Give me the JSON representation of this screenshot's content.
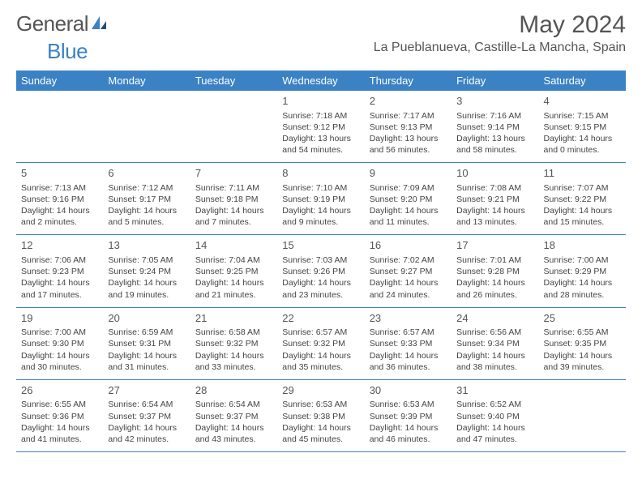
{
  "brand": {
    "part1": "General",
    "part2": "Blue"
  },
  "title": "May 2024",
  "location": "La Pueblanueva, Castille-La Mancha, Spain",
  "colors": {
    "header_bg": "#3b82c4",
    "header_text": "#ffffff",
    "text": "#444444",
    "title_text": "#555555",
    "rule": "#3b82c4"
  },
  "day_names": [
    "Sunday",
    "Monday",
    "Tuesday",
    "Wednesday",
    "Thursday",
    "Friday",
    "Saturday"
  ],
  "weeks": [
    [
      null,
      null,
      null,
      {
        "n": "1",
        "sr": "7:18 AM",
        "ss": "9:12 PM",
        "dl": "13 hours and 54 minutes."
      },
      {
        "n": "2",
        "sr": "7:17 AM",
        "ss": "9:13 PM",
        "dl": "13 hours and 56 minutes."
      },
      {
        "n": "3",
        "sr": "7:16 AM",
        "ss": "9:14 PM",
        "dl": "13 hours and 58 minutes."
      },
      {
        "n": "4",
        "sr": "7:15 AM",
        "ss": "9:15 PM",
        "dl": "14 hours and 0 minutes."
      }
    ],
    [
      {
        "n": "5",
        "sr": "7:13 AM",
        "ss": "9:16 PM",
        "dl": "14 hours and 2 minutes."
      },
      {
        "n": "6",
        "sr": "7:12 AM",
        "ss": "9:17 PM",
        "dl": "14 hours and 5 minutes."
      },
      {
        "n": "7",
        "sr": "7:11 AM",
        "ss": "9:18 PM",
        "dl": "14 hours and 7 minutes."
      },
      {
        "n": "8",
        "sr": "7:10 AM",
        "ss": "9:19 PM",
        "dl": "14 hours and 9 minutes."
      },
      {
        "n": "9",
        "sr": "7:09 AM",
        "ss": "9:20 PM",
        "dl": "14 hours and 11 minutes."
      },
      {
        "n": "10",
        "sr": "7:08 AM",
        "ss": "9:21 PM",
        "dl": "14 hours and 13 minutes."
      },
      {
        "n": "11",
        "sr": "7:07 AM",
        "ss": "9:22 PM",
        "dl": "14 hours and 15 minutes."
      }
    ],
    [
      {
        "n": "12",
        "sr": "7:06 AM",
        "ss": "9:23 PM",
        "dl": "14 hours and 17 minutes."
      },
      {
        "n": "13",
        "sr": "7:05 AM",
        "ss": "9:24 PM",
        "dl": "14 hours and 19 minutes."
      },
      {
        "n": "14",
        "sr": "7:04 AM",
        "ss": "9:25 PM",
        "dl": "14 hours and 21 minutes."
      },
      {
        "n": "15",
        "sr": "7:03 AM",
        "ss": "9:26 PM",
        "dl": "14 hours and 23 minutes."
      },
      {
        "n": "16",
        "sr": "7:02 AM",
        "ss": "9:27 PM",
        "dl": "14 hours and 24 minutes."
      },
      {
        "n": "17",
        "sr": "7:01 AM",
        "ss": "9:28 PM",
        "dl": "14 hours and 26 minutes."
      },
      {
        "n": "18",
        "sr": "7:00 AM",
        "ss": "9:29 PM",
        "dl": "14 hours and 28 minutes."
      }
    ],
    [
      {
        "n": "19",
        "sr": "7:00 AM",
        "ss": "9:30 PM",
        "dl": "14 hours and 30 minutes."
      },
      {
        "n": "20",
        "sr": "6:59 AM",
        "ss": "9:31 PM",
        "dl": "14 hours and 31 minutes."
      },
      {
        "n": "21",
        "sr": "6:58 AM",
        "ss": "9:32 PM",
        "dl": "14 hours and 33 minutes."
      },
      {
        "n": "22",
        "sr": "6:57 AM",
        "ss": "9:32 PM",
        "dl": "14 hours and 35 minutes."
      },
      {
        "n": "23",
        "sr": "6:57 AM",
        "ss": "9:33 PM",
        "dl": "14 hours and 36 minutes."
      },
      {
        "n": "24",
        "sr": "6:56 AM",
        "ss": "9:34 PM",
        "dl": "14 hours and 38 minutes."
      },
      {
        "n": "25",
        "sr": "6:55 AM",
        "ss": "9:35 PM",
        "dl": "14 hours and 39 minutes."
      }
    ],
    [
      {
        "n": "26",
        "sr": "6:55 AM",
        "ss": "9:36 PM",
        "dl": "14 hours and 41 minutes."
      },
      {
        "n": "27",
        "sr": "6:54 AM",
        "ss": "9:37 PM",
        "dl": "14 hours and 42 minutes."
      },
      {
        "n": "28",
        "sr": "6:54 AM",
        "ss": "9:37 PM",
        "dl": "14 hours and 43 minutes."
      },
      {
        "n": "29",
        "sr": "6:53 AM",
        "ss": "9:38 PM",
        "dl": "14 hours and 45 minutes."
      },
      {
        "n": "30",
        "sr": "6:53 AM",
        "ss": "9:39 PM",
        "dl": "14 hours and 46 minutes."
      },
      {
        "n": "31",
        "sr": "6:52 AM",
        "ss": "9:40 PM",
        "dl": "14 hours and 47 minutes."
      },
      null
    ]
  ],
  "labels": {
    "sunrise": "Sunrise:",
    "sunset": "Sunset:",
    "daylight": "Daylight:"
  }
}
